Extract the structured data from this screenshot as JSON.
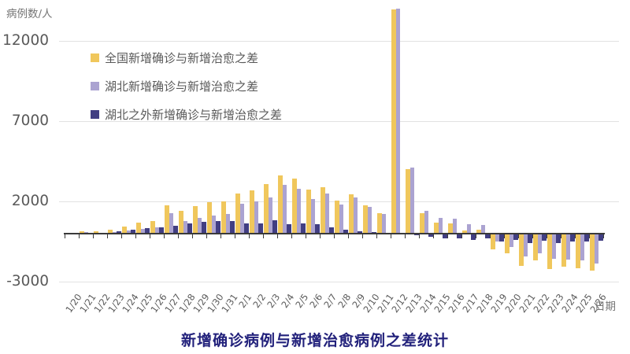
{
  "chart_data": {
    "type": "bar",
    "title": "新增确诊病例与新增治愈病例之差统计",
    "ylabel": "病例数/人",
    "xlabel": "日期",
    "ylim": [
      -3000,
      14500
    ],
    "y_ticks": [
      12000,
      7000,
      2000,
      -3000
    ],
    "grid": "horizontal",
    "legend_position": "inside-top-left",
    "categories": [
      "1/20",
      "1/21",
      "1/22",
      "1/23",
      "1/24",
      "1/25",
      "1/26",
      "1/27",
      "1/28",
      "1/29",
      "1/30",
      "1/31",
      "2/1",
      "2/2",
      "2/3",
      "2/4",
      "2/5",
      "2/6",
      "2/7",
      "2/8",
      "2/9",
      "2/10",
      "2/11",
      "2/12",
      "2/13",
      "2/14",
      "2/15",
      "2/16",
      "2/17",
      "2/18",
      "2/19",
      "2/20",
      "2/21",
      "2/22",
      "2/23",
      "2/24",
      "2/25",
      "2/26"
    ],
    "series": [
      {
        "name": "全国新增确诊与新增治愈之差",
        "color": "#f0c75c",
        "values": [
          60,
          140,
          130,
          250,
          440,
          680,
          770,
          1760,
          1420,
          1720,
          1940,
          2030,
          2500,
          2680,
          3080,
          3630,
          3430,
          2760,
          2890,
          2060,
          2430,
          1760,
          1270,
          13980,
          4010,
          1270,
          690,
          620,
          190,
          250,
          -960,
          -1220,
          -2000,
          -1650,
          -2180,
          -2080,
          -2150,
          -2320
        ]
      },
      {
        "name": "湖北新增确诊与新增治愈之差",
        "color": "#aba3d1",
        "values": [
          50,
          100,
          70,
          100,
          180,
          320,
          370,
          1290,
          800,
          960,
          1140,
          1250,
          1840,
          2020,
          2240,
          3030,
          2800,
          2180,
          2490,
          1820,
          2260,
          1660,
          1220,
          14040,
          4130,
          1440,
          990,
          920,
          580,
          560,
          -490,
          -820,
          -1400,
          -1230,
          -1580,
          -1600,
          -1650,
          -1860
        ]
      },
      {
        "name": "湖北之外新增确诊与新增治愈之差",
        "color": "#413e82",
        "values": [
          10,
          40,
          60,
          150,
          260,
          360,
          400,
          470,
          620,
          760,
          800,
          780,
          660,
          660,
          840,
          600,
          630,
          580,
          400,
          240,
          170,
          100,
          50,
          -60,
          -120,
          -170,
          -300,
          -290,
          -390,
          -310,
          -470,
          -400,
          -600,
          -420,
          -600,
          -480,
          -500,
          -460
        ]
      }
    ]
  }
}
